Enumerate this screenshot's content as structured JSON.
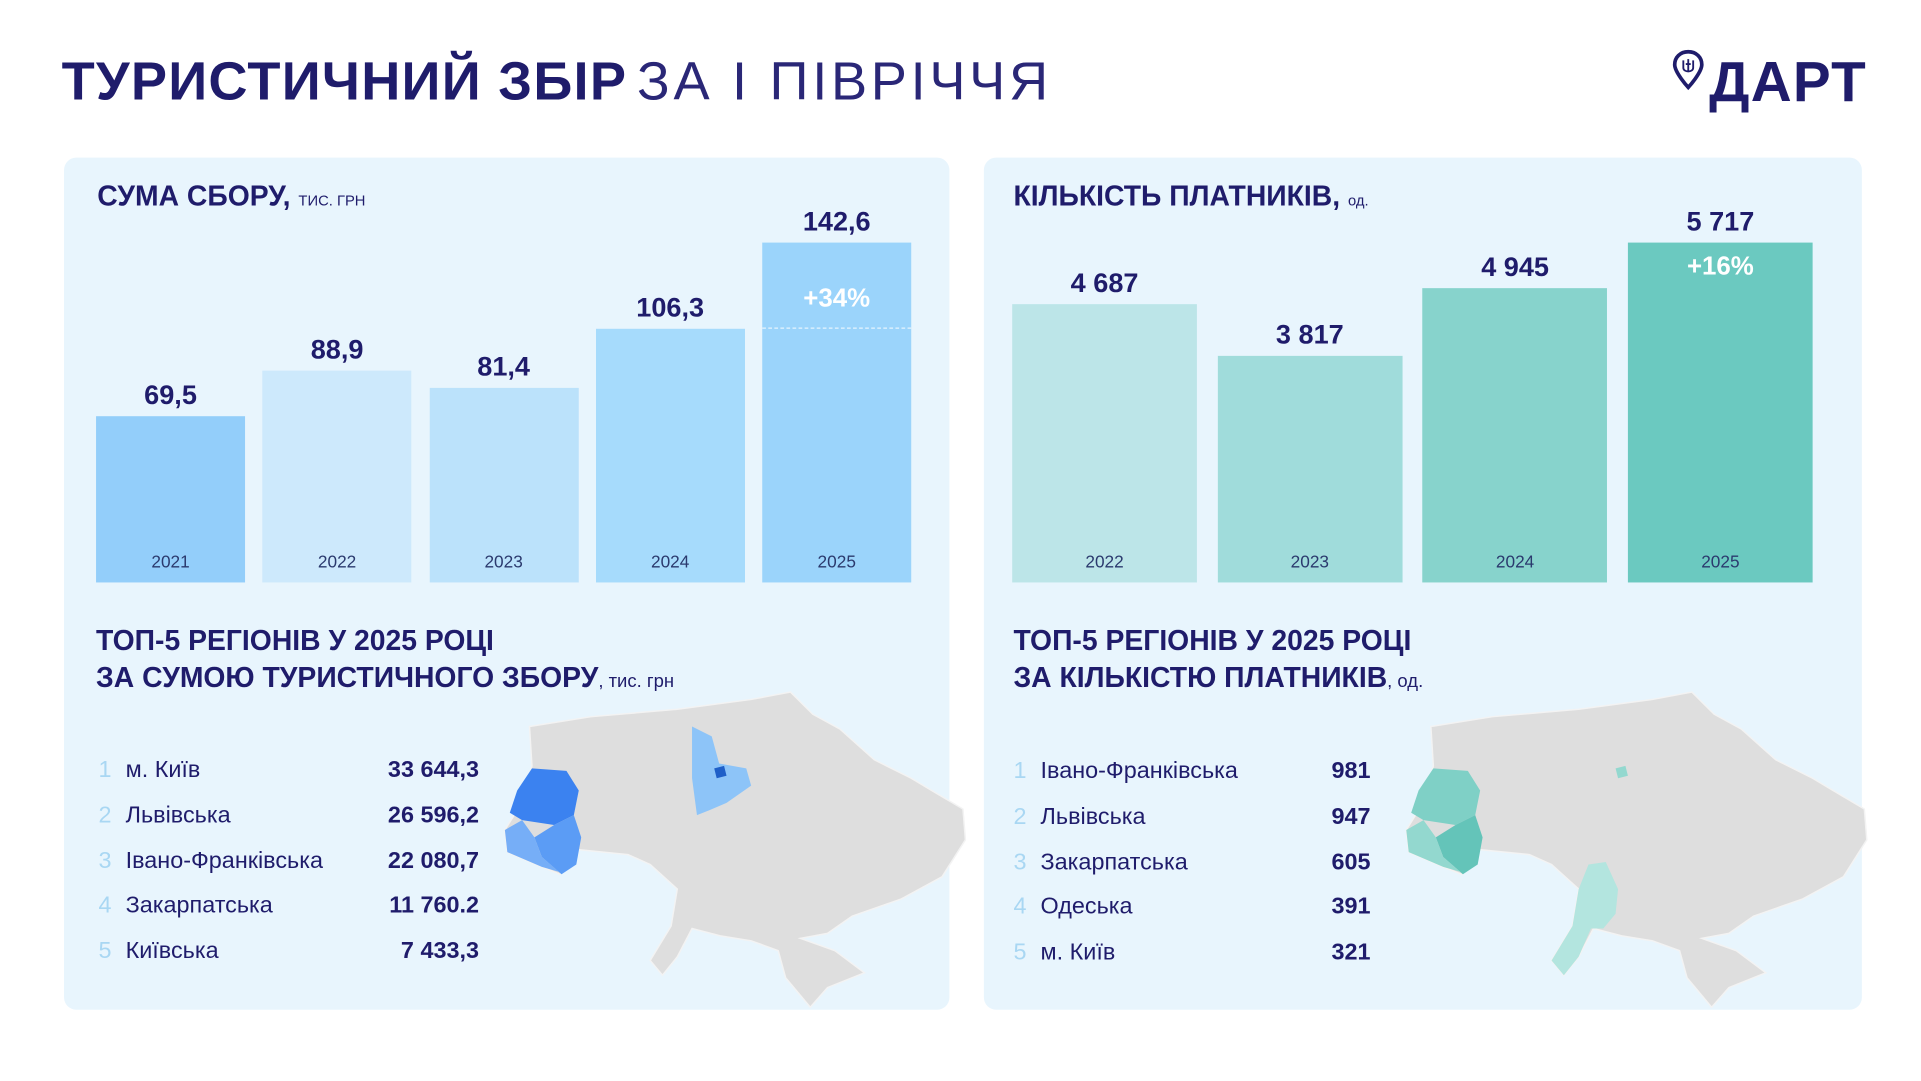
{
  "title": {
    "bold": "ТУРИСТИЧНИЙ ЗБІР",
    "light": "ЗА І ПІВРІЧЧЯ"
  },
  "logo": {
    "text": "ДАРТ",
    "icon": "map-pin-trident-icon"
  },
  "colors": {
    "navy": "#1f1c6b",
    "panel": "#e8f5fd",
    "map_gray": "#dedede"
  },
  "chart_data": [
    {
      "type": "bar",
      "title": "СУМА СБОРУ,",
      "unit": "ТИС. ГРН",
      "categories": [
        "2021",
        "2022",
        "2023",
        "2024",
        "2025"
      ],
      "values": [
        69.5,
        88.9,
        81.4,
        106.3,
        142.6
      ],
      "value_labels": [
        "69,5",
        "88,9",
        "81,4",
        "106,3",
        "142,6"
      ],
      "change_label": "+34%",
      "colors": [
        "#93cefa",
        "#cde9fc",
        "#bbe2fb",
        "#a6dbfc",
        "#9bd4fb"
      ],
      "ylim": [
        0,
        142.6
      ]
    },
    {
      "type": "bar",
      "title": "КІЛЬКІСТЬ ПЛАТНИКІВ,",
      "unit": "од.",
      "categories": [
        "2022",
        "2023",
        "2024",
        "2025"
      ],
      "values": [
        4687,
        3817,
        4945,
        5717
      ],
      "value_labels": [
        "4 687",
        "3 817",
        "4 945",
        "5 717"
      ],
      "change_label": "+16%",
      "colors": [
        "#bce5e8",
        "#a0dcdb",
        "#87d3cc",
        "#6bc9c0"
      ],
      "ylim": [
        0,
        5717
      ]
    }
  ],
  "top_sum": {
    "line1": "ТОП-5 РЕГІОНІВ У 2025 РОЦІ",
    "line2": "ЗА СУМОЮ ТУРИСТИЧНОГО ЗБОРУ",
    "unit": ", тис. грн",
    "rows": [
      {
        "n": "1",
        "name": "м. Київ",
        "value": "33 644,3"
      },
      {
        "n": "2",
        "name": "Львівська",
        "value": "26 596,2"
      },
      {
        "n": "3",
        "name": "Івано-Франківська",
        "value": "22 080,7"
      },
      {
        "n": "4",
        "name": "Закарпатська",
        "value": "11 760.2"
      },
      {
        "n": "5",
        "name": "Київська",
        "value": "7 433,3"
      }
    ]
  },
  "top_payers": {
    "line1": "ТОП-5 РЕГІОНІВ У 2025 РОЦІ",
    "line2": "ЗА КІЛЬКІСТЮ ПЛАТНИКІВ",
    "unit": ", од.",
    "rows": [
      {
        "n": "1",
        "name": "Івано-Франківська",
        "value": "981"
      },
      {
        "n": "2",
        "name": "Львівська",
        "value": "947"
      },
      {
        "n": "3",
        "name": "Закарпатська",
        "value": "605"
      },
      {
        "n": "4",
        "name": "Одеська",
        "value": "391"
      },
      {
        "n": "5",
        "name": "м. Київ",
        "value": "321"
      }
    ]
  }
}
